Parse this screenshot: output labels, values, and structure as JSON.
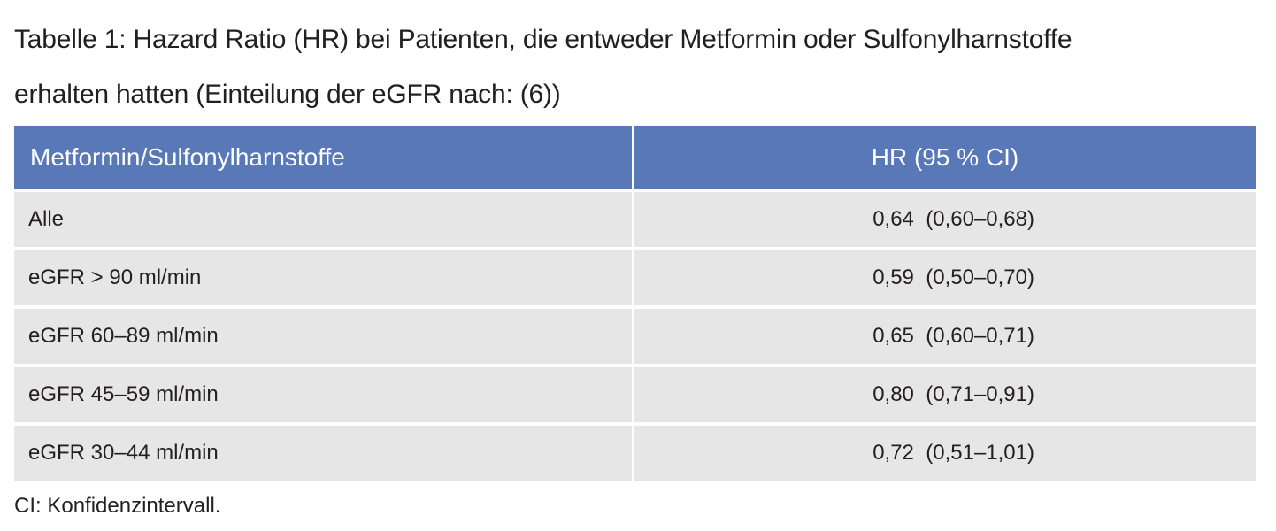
{
  "caption": {
    "line1": "Tabelle 1: Hazard Ratio (HR) bei Patienten, die entweder Metformin oder Sulfonylharnstoffe",
    "line2": "erhalten hatten (Einteilung der eGFR nach: (6))"
  },
  "table": {
    "headers": [
      "Metformin/Sulfonylharnstoffe",
      "HR (95 % CI)"
    ],
    "rows": [
      [
        "Alle",
        "0,64  (0,60–0,68)"
      ],
      [
        "eGFR > 90 ml/min",
        "0,59  (0,50–0,70)"
      ],
      [
        "eGFR 60–89 ml/min",
        "0,65  (0,60–0,71)"
      ],
      [
        "eGFR 45–59 ml/min",
        "0,80  (0,71–0,91)"
      ],
      [
        "eGFR 30–44 ml/min",
        "0,72  (0,51–1,01)"
      ]
    ]
  },
  "footnote": "CI: Konfidenzintervall.",
  "colors": {
    "header_bg": "#5878b8",
    "row_bg": "#e6e6e7",
    "text": "#231f20"
  }
}
